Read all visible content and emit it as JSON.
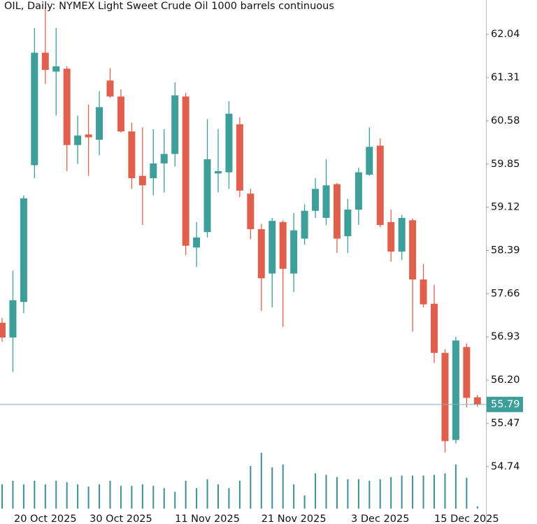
{
  "chart_data": {
    "type": "candlestick",
    "title": "OIL, Daily:  NYMEX Light Sweet Crude Oil 1000 barrels continuous",
    "categories": [
      null,
      null,
      null,
      null,
      "20 Oct 2025",
      null,
      null,
      null,
      null,
      null,
      null,
      "30 Oct 2025",
      null,
      null,
      null,
      null,
      null,
      null,
      null,
      "11 Nov 2025",
      null,
      null,
      null,
      null,
      null,
      null,
      null,
      "21 Nov 2025",
      null,
      null,
      null,
      null,
      null,
      null,
      null,
      "3 Dec 2025",
      null,
      null,
      null,
      null,
      null,
      null,
      null,
      "15 Dec 2025",
      null
    ],
    "open": [
      57.17,
      56.92,
      57.52,
      59.83,
      61.73,
      61.41,
      61.46,
      60.17,
      60.35,
      60.26,
      61.26,
      60.99,
      60.4,
      59.65,
      59.61,
      59.86,
      60.02,
      60.99,
      58.44,
      58.7,
      59.69,
      59.71,
      60.52,
      59.35,
      58.75,
      58.0,
      58.87,
      58.0,
      58.59,
      59.06,
      58.94,
      59.51,
      58.63,
      59.08,
      59.67,
      60.16,
      58.87,
      58.37,
      58.9,
      57.9,
      57.49,
      56.66,
      55.19,
      56.76,
      55.91
    ],
    "high": [
      57.25,
      58.05,
      59.32,
      62.15,
      62.5,
      62.15,
      61.5,
      60.67,
      60.85,
      61.08,
      61.47,
      61.11,
      60.55,
      60.47,
      60.44,
      60.44,
      61.23,
      61.05,
      58.87,
      60.61,
      60.44,
      60.91,
      60.64,
      59.43,
      58.84,
      58.94,
      58.9,
      59.02,
      59.17,
      59.61,
      59.93,
      59.53,
      59.26,
      59.79,
      60.47,
      60.28,
      59.08,
      58.99,
      58.93,
      58.16,
      57.81,
      56.72,
      56.93,
      56.82,
      55.95
    ],
    "low": [
      56.85,
      56.34,
      57.33,
      59.61,
      61.2,
      60.67,
      59.73,
      59.85,
      59.65,
      60.0,
      60.97,
      60.38,
      59.43,
      58.82,
      59.32,
      59.37,
      59.81,
      58.31,
      58.11,
      58.61,
      59.37,
      59.43,
      59.29,
      58.58,
      57.37,
      57.43,
      57.1,
      57.69,
      58.49,
      58.94,
      58.82,
      58.35,
      58.35,
      58.82,
      59.65,
      58.78,
      58.2,
      58.23,
      57.02,
      57.43,
      56.49,
      54.98,
      55.13,
      55.74,
      55.75
    ],
    "close": [
      56.92,
      57.55,
      59.27,
      61.73,
      61.44,
      61.5,
      60.17,
      60.33,
      60.3,
      60.81,
      60.99,
      60.4,
      59.61,
      59.49,
      59.86,
      60.02,
      61.01,
      58.47,
      58.61,
      59.93,
      59.73,
      60.7,
      59.4,
      58.75,
      57.92,
      58.89,
      58.08,
      58.73,
      59.06,
      59.43,
      59.49,
      58.59,
      59.08,
      59.71,
      60.14,
      58.82,
      58.37,
      58.94,
      57.9,
      57.48,
      56.66,
      55.17,
      56.87,
      55.9,
      55.79
    ],
    "volume": [
      33,
      38,
      33,
      38,
      33,
      38,
      36,
      33,
      30,
      33,
      38,
      31,
      31,
      33,
      31,
      28,
      23,
      38,
      28,
      40,
      33,
      28,
      38,
      58,
      76,
      56,
      60,
      33,
      18,
      48,
      46,
      43,
      40,
      40,
      38,
      40,
      43,
      45,
      45,
      45,
      46,
      48,
      60,
      42,
      3
    ],
    "up_color": "#3d9e9a",
    "down_color": "#e0604d",
    "volume_color": "#3d8e9a",
    "last_price": 55.79,
    "ylim": [
      54.03,
      62.62
    ],
    "yticks": [
      62.04,
      61.31,
      60.58,
      59.85,
      59.12,
      58.39,
      57.66,
      56.93,
      {
        "value": 56.2,
        "label": "56.20"
      },
      55.47,
      54.74
    ]
  }
}
